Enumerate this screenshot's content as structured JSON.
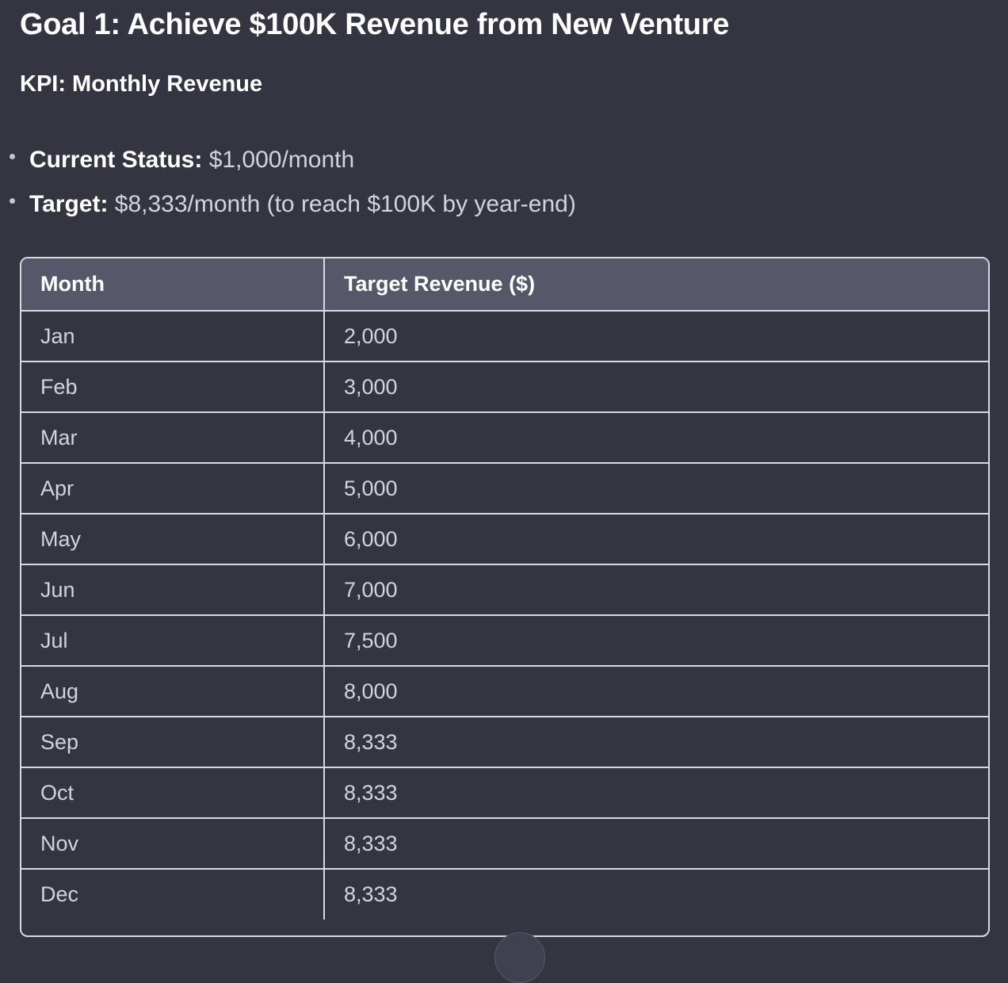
{
  "goal": {
    "title": "Goal 1: Achieve $100K Revenue from New Venture"
  },
  "kpi": {
    "title": "KPI: Monthly Revenue"
  },
  "status": {
    "current_label": "Current Status:",
    "current_value": " $1,000/month",
    "target_label": "Target:",
    "target_value": " $8,333/month (to reach $100K by year-end)"
  },
  "table": {
    "headers": [
      "Month",
      "Target Revenue ($)"
    ],
    "rows": [
      [
        "Jan",
        "2,000"
      ],
      [
        "Feb",
        "3,000"
      ],
      [
        "Mar",
        "4,000"
      ],
      [
        "Apr",
        "5,000"
      ],
      [
        "May",
        "6,000"
      ],
      [
        "Jun",
        "7,000"
      ],
      [
        "Jul",
        "7,500"
      ],
      [
        "Aug",
        "8,000"
      ],
      [
        "Sep",
        "8,333"
      ],
      [
        "Oct",
        "8,333"
      ],
      [
        "Nov",
        "8,333"
      ],
      [
        "Dec",
        "8,333"
      ]
    ]
  }
}
